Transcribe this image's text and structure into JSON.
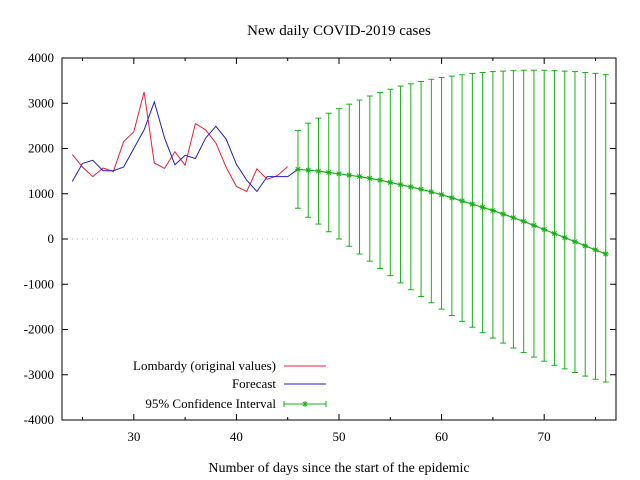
{
  "chart_data": {
    "type": "line",
    "title": "New daily COVID-2019 cases",
    "xlabel": "Number of days since the start of the epidemic",
    "ylabel": "",
    "xlim": [
      23,
      77
    ],
    "ylim": [
      -4000,
      4000
    ],
    "xticks": [
      30,
      40,
      50,
      60,
      70
    ],
    "yticks": [
      -4000,
      -3000,
      -2000,
      -1000,
      0,
      1000,
      2000,
      3000,
      4000
    ],
    "grid": false,
    "legend_position": "bottom-left",
    "zero_line_dotted_until": 45,
    "series": [
      {
        "name": "Lombardy (original values)",
        "color": "#e8213b",
        "style": "line",
        "x": [
          24,
          25,
          26,
          27,
          28,
          29,
          30,
          31,
          32,
          33,
          34,
          35,
          36,
          37,
          38,
          39,
          40,
          41,
          42,
          43,
          44,
          45
        ],
        "y": [
          1870,
          1590,
          1380,
          1570,
          1490,
          2150,
          2370,
          3250,
          1680,
          1560,
          1930,
          1630,
          2550,
          2410,
          2120,
          1590,
          1160,
          1050,
          1550,
          1320,
          1400,
          1600
        ]
      },
      {
        "name": "Forecast",
        "color": "#2020c0",
        "style": "line",
        "x": [
          24,
          25,
          26,
          27,
          28,
          29,
          30,
          31,
          32,
          33,
          34,
          35,
          36,
          37,
          38,
          39,
          40,
          41,
          42,
          43,
          44,
          45,
          46
        ],
        "y": [
          1270,
          1670,
          1740,
          1510,
          1510,
          1590,
          2000,
          2410,
          3030,
          2230,
          1640,
          1850,
          1780,
          2230,
          2490,
          2210,
          1650,
          1300,
          1050,
          1380,
          1380,
          1380,
          1540
        ]
      },
      {
        "name": "95% Confidence Interval",
        "color": "#17b117",
        "style": "errorbars",
        "x": [
          46,
          47,
          48,
          49,
          50,
          51,
          52,
          53,
          54,
          55,
          56,
          57,
          58,
          59,
          60,
          61,
          62,
          63,
          64,
          65,
          66,
          67,
          68,
          69,
          70,
          71,
          72,
          73,
          74,
          75,
          76
        ],
        "y": [
          1540,
          1520,
          1500,
          1470,
          1440,
          1410,
          1380,
          1340,
          1300,
          1250,
          1200,
          1150,
          1100,
          1040,
          980,
          910,
          840,
          770,
          700,
          630,
          550,
          470,
          390,
          300,
          210,
          120,
          30,
          -60,
          -150,
          -240,
          -330
        ],
        "low": [
          680,
          480,
          330,
          160,
          0,
          -160,
          -330,
          -490,
          -650,
          -810,
          -970,
          -1120,
          -1270,
          -1410,
          -1550,
          -1690,
          -1820,
          -1950,
          -2070,
          -2190,
          -2300,
          -2410,
          -2510,
          -2610,
          -2700,
          -2790,
          -2870,
          -2950,
          -3030,
          -3100,
          -3160
        ],
        "high": [
          2400,
          2560,
          2670,
          2780,
          2880,
          2980,
          3070,
          3160,
          3240,
          3310,
          3380,
          3430,
          3480,
          3530,
          3570,
          3600,
          3630,
          3660,
          3680,
          3700,
          3710,
          3720,
          3730,
          3730,
          3730,
          3720,
          3710,
          3700,
          3680,
          3660,
          3630
        ]
      }
    ]
  }
}
